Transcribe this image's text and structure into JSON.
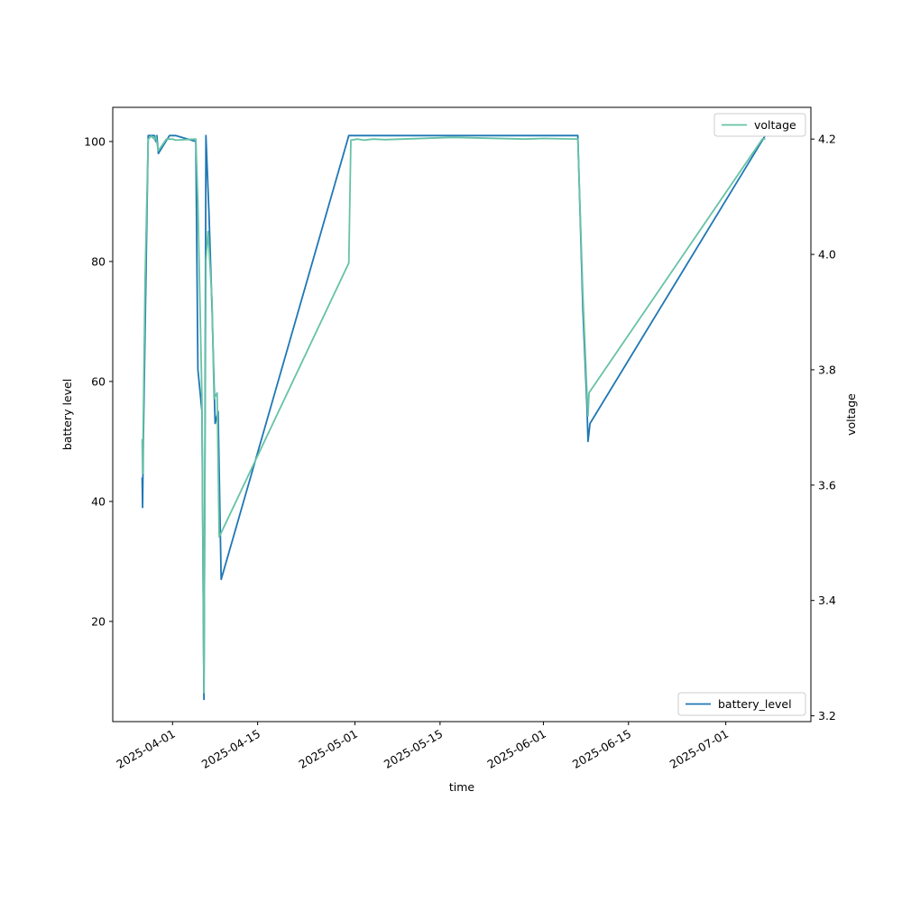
{
  "chart_data": {
    "type": "line",
    "xlabel": "time",
    "ylabel_left": "battery level",
    "ylabel_right": "voltage",
    "x_ticks": [
      "2025-04-01",
      "2025-04-15",
      "2025-05-01",
      "2025-05-15",
      "2025-06-01",
      "2025-06-15",
      "2025-07-01"
    ],
    "xlim": [
      "2025-03-22T04:00",
      "2025-07-15T00:00"
    ],
    "ylim_left": [
      3.3,
      105.7
    ],
    "yticks_left": [
      20,
      40,
      60,
      80,
      100
    ],
    "ylim_right": [
      3.19,
      4.255
    ],
    "yticks_right": [
      3.2,
      3.4,
      3.6,
      3.8,
      4.0,
      4.2
    ],
    "grid": false,
    "series": [
      {
        "name": "battery_level",
        "axis": "left",
        "color": "#1f77b4",
        "legend_position": "lower right",
        "points": [
          [
            "2025-03-27T00:00",
            44
          ],
          [
            "2025-03-27T02:00",
            39
          ],
          [
            "2025-03-27T04:00",
            48
          ],
          [
            "2025-03-28T00:00",
            101
          ],
          [
            "2025-03-29T00:00",
            101
          ],
          [
            "2025-03-29T06:00",
            100
          ],
          [
            "2025-03-29T10:00",
            101
          ],
          [
            "2025-03-29T16:00",
            98
          ],
          [
            "2025-03-31T12:00",
            101
          ],
          [
            "2025-04-01T12:00",
            101
          ],
          [
            "2025-04-04T20:00",
            100
          ],
          [
            "2025-04-05T04:00",
            62
          ],
          [
            "2025-04-05T20:00",
            55
          ],
          [
            "2025-04-06T04:00",
            7
          ],
          [
            "2025-04-06T08:00",
            48
          ],
          [
            "2025-04-06T12:00",
            101
          ],
          [
            "2025-04-07T00:00",
            88
          ],
          [
            "2025-04-07T12:00",
            72
          ],
          [
            "2025-04-08T00:00",
            53
          ],
          [
            "2025-04-08T12:00",
            55
          ],
          [
            "2025-04-09T00:00",
            27
          ],
          [
            "2025-04-30T00:00",
            101
          ],
          [
            "2025-06-06T16:00",
            101
          ],
          [
            "2025-06-07T12:00",
            72
          ],
          [
            "2025-06-08T04:00",
            56
          ],
          [
            "2025-06-08T08:00",
            50
          ],
          [
            "2025-06-08T16:00",
            53
          ],
          [
            "2025-07-07T12:00",
            101
          ]
        ]
      },
      {
        "name": "voltage",
        "axis": "right",
        "color": "#66c2a5",
        "legend_position": "upper right",
        "points": [
          [
            "2025-03-27T00:00",
            3.68
          ],
          [
            "2025-03-27T02:00",
            3.62
          ],
          [
            "2025-03-27T12:00",
            3.96
          ],
          [
            "2025-03-28T00:00",
            4.2
          ],
          [
            "2025-03-28T12:00",
            4.205
          ],
          [
            "2025-03-29T00:00",
            4.2
          ],
          [
            "2025-03-29T06:00",
            4.205
          ],
          [
            "2025-03-29T16:00",
            4.18
          ],
          [
            "2025-03-31T00:00",
            4.2
          ],
          [
            "2025-04-01T00:00",
            4.2
          ],
          [
            "2025-04-01T12:00",
            4.198
          ],
          [
            "2025-04-04T20:00",
            4.2
          ],
          [
            "2025-04-05T04:00",
            4.09
          ],
          [
            "2025-04-05T20:00",
            3.75
          ],
          [
            "2025-04-06T04:00",
            3.24
          ],
          [
            "2025-04-06T12:00",
            3.99
          ],
          [
            "2025-04-06T20:00",
            4.04
          ],
          [
            "2025-04-07T12:00",
            3.92
          ],
          [
            "2025-04-07T20:00",
            3.75
          ],
          [
            "2025-04-08T08:00",
            3.76
          ],
          [
            "2025-04-08T16:00",
            3.51
          ],
          [
            "2025-04-30T00:00",
            3.985
          ],
          [
            "2025-04-30T08:00",
            4.198
          ],
          [
            "2025-05-01T12:00",
            4.2
          ],
          [
            "2025-05-02T12:00",
            4.198
          ],
          [
            "2025-05-04T00:00",
            4.2
          ],
          [
            "2025-05-06T00:00",
            4.199
          ],
          [
            "2025-05-17T00:00",
            4.203
          ],
          [
            "2025-05-29T00:00",
            4.2
          ],
          [
            "2025-06-01T00:00",
            4.201
          ],
          [
            "2025-06-06T16:00",
            4.2
          ],
          [
            "2025-06-07T12:00",
            3.93
          ],
          [
            "2025-06-08T04:00",
            3.76
          ],
          [
            "2025-06-08T08:00",
            3.72
          ],
          [
            "2025-06-08T12:00",
            3.76
          ],
          [
            "2025-07-07T00:00",
            4.2
          ],
          [
            "2025-07-07T12:00",
            4.2
          ]
        ]
      }
    ]
  }
}
